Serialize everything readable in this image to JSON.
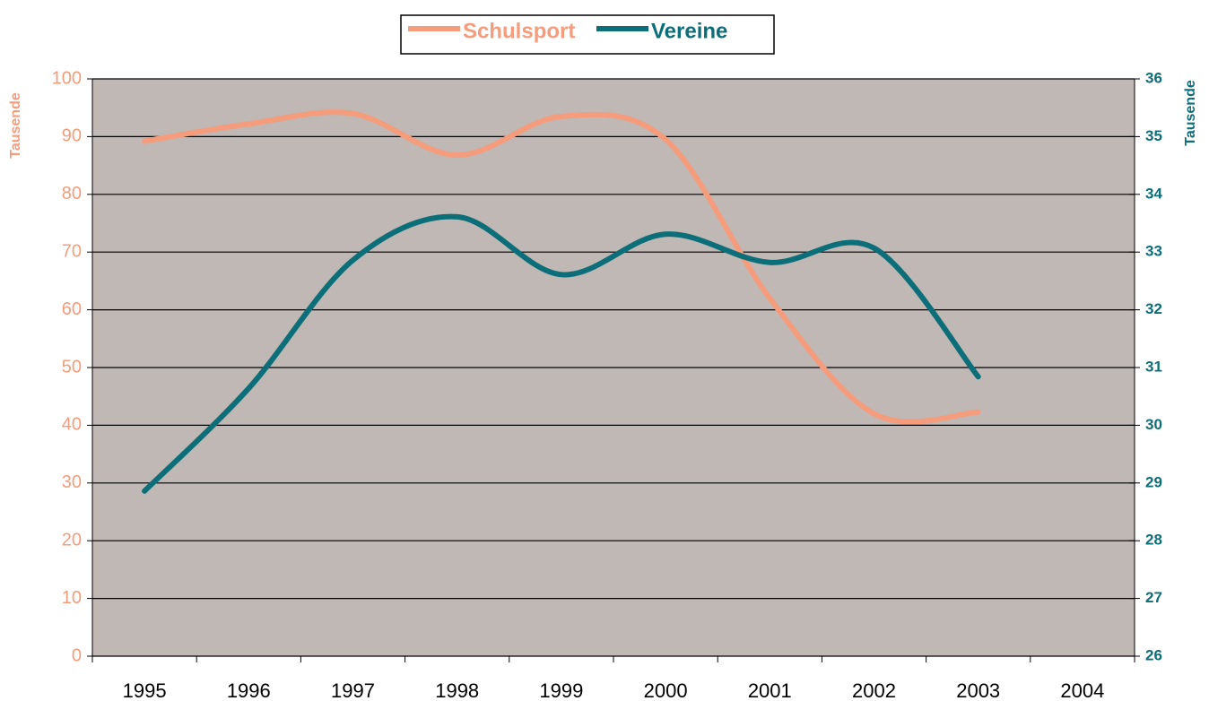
{
  "chart_data": {
    "type": "line",
    "y_label": "Tausende",
    "y2_label": "Tausende",
    "categories": [
      "1995",
      "1996",
      "1997",
      "1998",
      "1999",
      "2000",
      "2001",
      "2002",
      "2003",
      "2004"
    ],
    "series": [
      {
        "name": "Schulsport",
        "color": "#f59c7c",
        "values": [
          89.2,
          92.2,
          94,
          86.8,
          93.5,
          89.5,
          62,
          42,
          42.3,
          null
        ]
      },
      {
        "name": "Vereine",
        "color": "#0b6e78",
        "axis": "y2",
        "values": [
          28.86,
          30.64,
          32.86,
          33.61,
          32.61,
          33.31,
          32.82,
          33.07,
          30.84,
          null
        ]
      }
    ],
    "ylim": [
      0,
      100
    ],
    "yticks": [
      0,
      10,
      20,
      30,
      40,
      50,
      60,
      70,
      80,
      90,
      100
    ],
    "y2lim": [
      26,
      36
    ],
    "y2ticks": [
      26,
      27,
      28,
      29,
      30,
      31,
      32,
      33,
      34,
      35,
      36
    ],
    "grid": true,
    "plot_background": "#c0b8b4",
    "legend": "top"
  }
}
